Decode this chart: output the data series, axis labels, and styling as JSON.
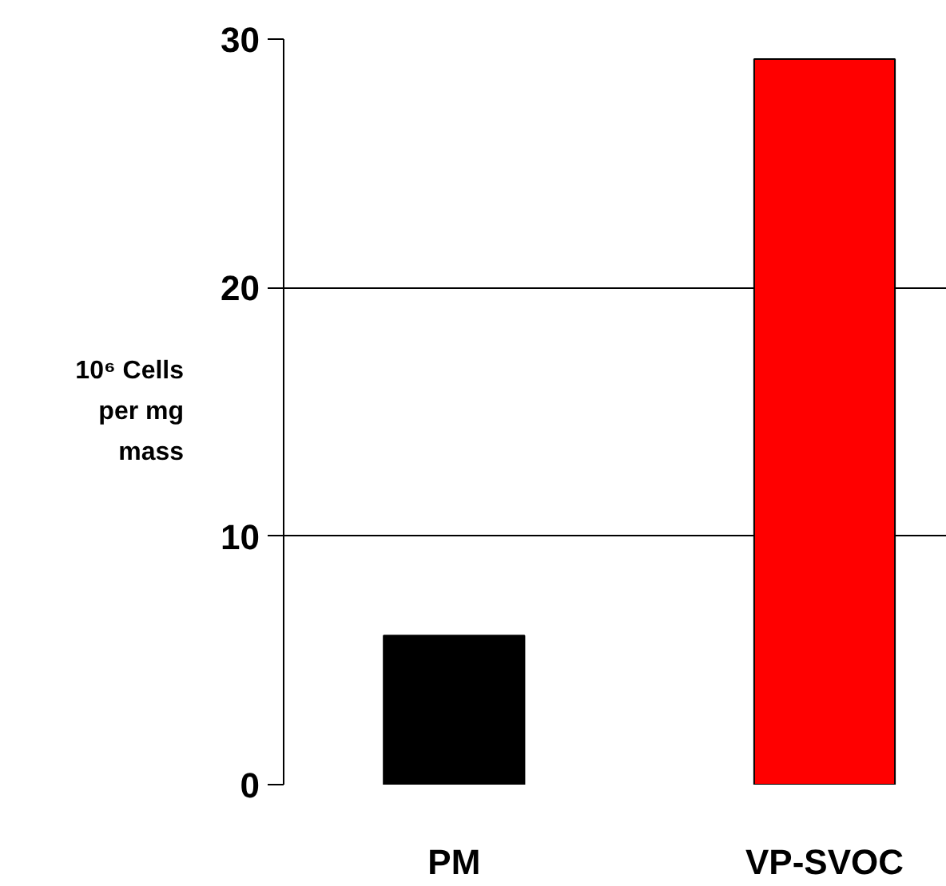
{
  "chart_data": {
    "type": "bar",
    "ylabel": "10⁶ Cells per mg mass",
    "categories": [
      "PM",
      "VP-SVOC"
    ],
    "values": [
      6.0,
      29.2
    ],
    "colors": [
      "#000000",
      "#ff0000"
    ],
    "ylim": [
      0,
      30
    ],
    "yticks": [
      0,
      10,
      20,
      30
    ],
    "grid": "y"
  }
}
